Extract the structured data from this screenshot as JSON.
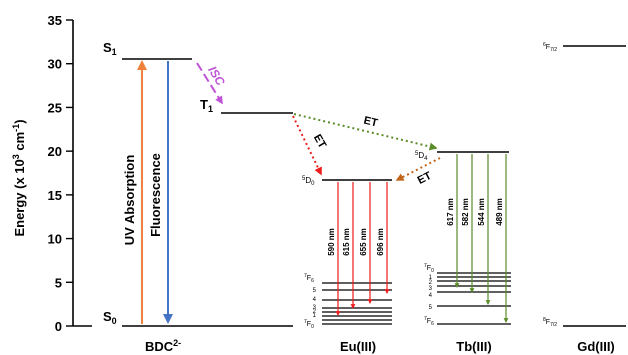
{
  "axis": {
    "ylabel": "Energy (x 10",
    "ylabel_sup": "3",
    "ylabel_unit": " cm",
    "ylabel_unit_sup": "-1",
    "ylabel_close": ")",
    "ylim": [
      0,
      35
    ],
    "ticks": [
      "0",
      "5",
      "10",
      "15",
      "20",
      "25",
      "30",
      "35"
    ]
  },
  "groups": {
    "ligand": {
      "label": "BDC",
      "label_sup": "2-"
    },
    "eu": {
      "label": "Eu(III)"
    },
    "tb": {
      "label": "Tb(III)"
    },
    "gd": {
      "label": "Gd(III)"
    }
  },
  "ligand": {
    "s1": {
      "main": "S",
      "sub": "1"
    },
    "s0": {
      "main": "S",
      "sub": "0"
    },
    "t1": {
      "main": "T",
      "sub": "1"
    },
    "isc": "ISC",
    "uv_absorption": "UV Absorption",
    "fluorescence": "Fluorescence"
  },
  "energy_transfer": {
    "et1": "ET",
    "et2": "ET",
    "et3": "ET"
  },
  "eu": {
    "emitting": {
      "sup": "5",
      "main": "D",
      "sub": "0"
    },
    "ground_top": {
      "sup": "7",
      "main": "F",
      "sub": "6"
    },
    "ground_bottom": {
      "sup": "7",
      "main": "F",
      "sub": "0"
    },
    "levels": [
      "5",
      "4",
      "3",
      "2",
      "1"
    ],
    "transitions": [
      "590 nm",
      "615 nm",
      "655 nm",
      "696 nm"
    ]
  },
  "tb": {
    "emitting": {
      "sup": "5",
      "main": "D",
      "sub": "4"
    },
    "ground_top": {
      "sup": "7",
      "main": "F",
      "sub": "0"
    },
    "ground_bottom": {
      "sup": "7",
      "main": "F",
      "sub": "6"
    },
    "levels": [
      "1",
      "2",
      "3",
      "4",
      "5"
    ],
    "transitions": [
      "617 nm",
      "582 nm",
      "544 nm",
      "489 nm"
    ]
  },
  "gd": {
    "upper": {
      "sup": "6",
      "main": "F",
      "sub": "7/2"
    },
    "lower": {
      "sup": "8",
      "main": "F",
      "sub": "7/2"
    }
  },
  "colors": {
    "uv_absorption": "#f0813a",
    "fluorescence": "#4472c4",
    "isc": "#c054d6",
    "et_eu": "#ee1c1c",
    "et_tb": "#5b8c2a",
    "et_tb_eu": "#c0651a",
    "eu_emission": "#ee1c1c",
    "tb_emission": "#5b8c2a"
  }
}
